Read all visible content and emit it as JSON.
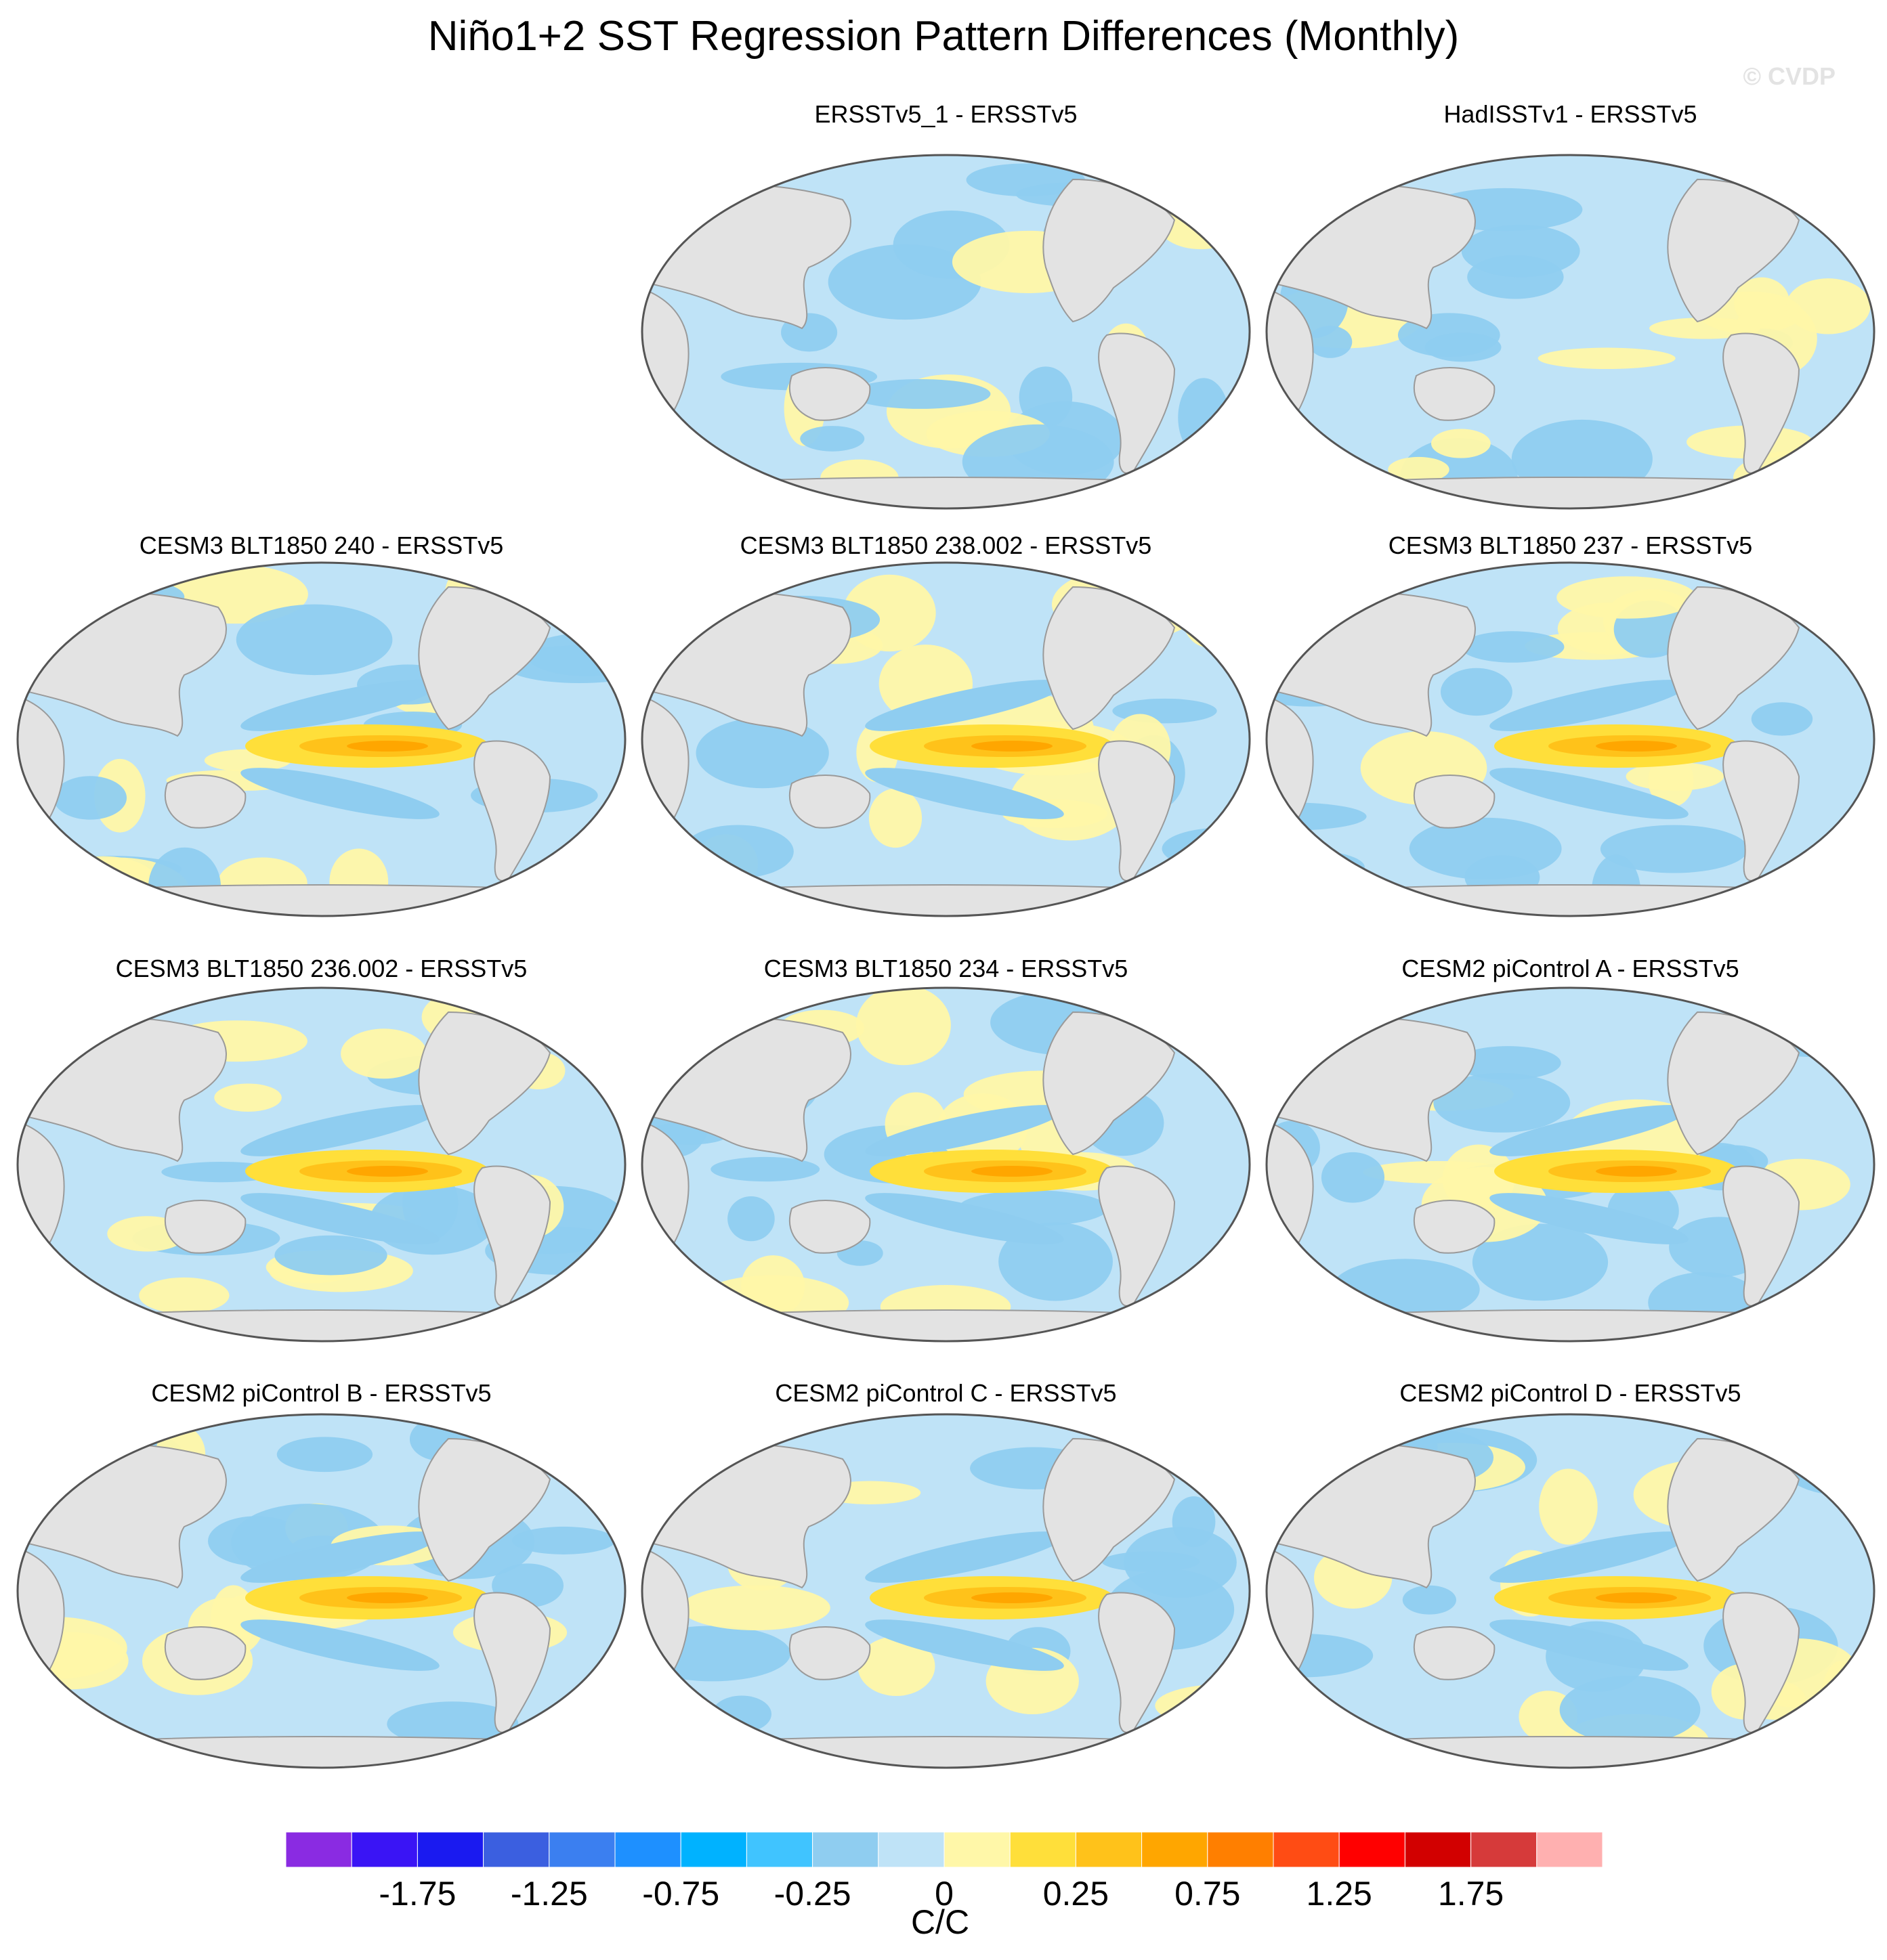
{
  "figure": {
    "title": "Niño1+2 SST Regression Pattern Differences (Monthly)",
    "watermark": "© CVDP"
  },
  "panels": [
    {
      "title": "ERSSTv5_1 - ERSSTv5"
    },
    {
      "title": "HadISSTv1 - ERSSTv5"
    },
    {
      "title": "CESM3 BLT1850 240 - ERSSTv5"
    },
    {
      "title": "CESM3 BLT1850 238.002 - ERSSTv5"
    },
    {
      "title": "CESM3 BLT1850 237 - ERSSTv5"
    },
    {
      "title": "CESM3 BLT1850 236.002 - ERSSTv5"
    },
    {
      "title": "CESM3 BLT1850 234 - ERSSTv5"
    },
    {
      "title": "CESM2 piControl A - ERSSTv5"
    },
    {
      "title": "CESM2 piControl B - ERSSTv5"
    },
    {
      "title": "CESM2 piControl C - ERSSTv5"
    },
    {
      "title": "CESM2 piControl D - ERSSTv5"
    }
  ],
  "colorbar": {
    "unit": "C/C",
    "colors": [
      "#8a2be2",
      "#3a14f5",
      "#1a1af0",
      "#3b5fe0",
      "#3b7ff0",
      "#1e90ff",
      "#00b2ff",
      "#40c4ff",
      "#8fcdf0",
      "#bfe3f7",
      "#fff7a8",
      "#ffdf3a",
      "#ffc21a",
      "#ffa600",
      "#ff7f00",
      "#ff4c14",
      "#ff0000",
      "#d20000",
      "#d63a3a",
      "#ffb0b0"
    ],
    "tick_labels": [
      "-1.75",
      "-1.25",
      "-0.75",
      "-0.25",
      "0",
      "0.25",
      "0.75",
      "1.25",
      "1.75"
    ]
  }
}
